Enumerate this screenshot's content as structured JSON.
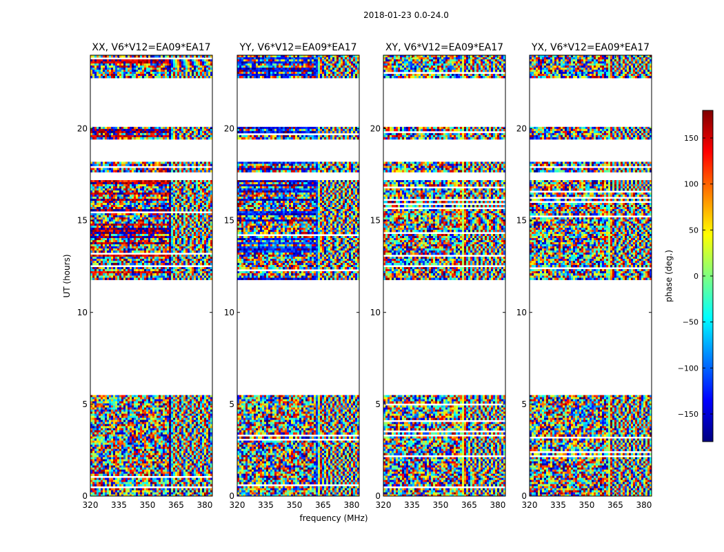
{
  "figure": {
    "suptitle": "2018-01-23 0.0-24.0",
    "xlabel": "frequency (MHz)",
    "ylabel": "UT (hours)"
  },
  "colorbar": {
    "label": "phase (deg.)",
    "range": [
      -180,
      180
    ],
    "ticks": [
      -150,
      -100,
      -50,
      0,
      50,
      100,
      150
    ],
    "tick_labels": [
      "−150",
      "−100",
      "−50",
      "0",
      "50",
      "100",
      "150"
    ],
    "colormap": "jet",
    "colors": [
      "#00007f",
      "#0000ff",
      "#007fff",
      "#00ffff",
      "#7fff7f",
      "#ffff00",
      "#ff7f00",
      "#ff0000",
      "#7f0000"
    ]
  },
  "chart_data": {
    "type": "heatmap",
    "value_description": "visibility phase (deg.) vs frequency and UT",
    "xlim": [
      320,
      384
    ],
    "ylim": [
      0,
      24
    ],
    "xticks": [
      320,
      335,
      350,
      365,
      380
    ],
    "yticks": [
      0,
      5,
      10,
      15,
      20
    ],
    "bandpass_break_mhz": 361,
    "data_time_ranges_hours": [
      [
        0.0,
        5.5
      ],
      [
        11.8,
        12.0
      ],
      [
        12.1,
        17.2
      ],
      [
        17.7,
        18.2
      ],
      [
        19.5,
        20.1
      ],
      [
        22.8,
        24.0
      ]
    ],
    "panels": [
      {
        "title": "XX, V6*V12=EA09*EA17",
        "polarization": "XX",
        "baseline": "V6*V12=EA09*EA17",
        "dominant_phase_deg": 160
      },
      {
        "title": "YY, V6*V12=EA09*EA17",
        "polarization": "YY",
        "baseline": "V6*V12=EA09*EA17",
        "dominant_phase_deg": -140
      },
      {
        "title": "XY, V6*V12=EA09*EA17",
        "polarization": "XY",
        "baseline": "V6*V12=EA09*EA17",
        "dominant_phase_deg": 0
      },
      {
        "title": "YX, V6*V12=EA09*EA17",
        "polarization": "YX",
        "baseline": "V6*V12=EA09*EA17",
        "dominant_phase_deg": -20
      }
    ]
  }
}
